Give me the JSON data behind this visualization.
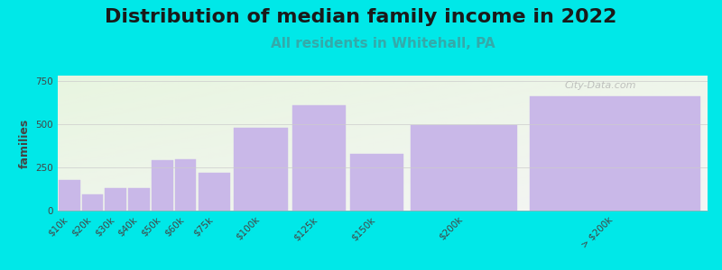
{
  "title": "Distribution of median family income in 2022",
  "subtitle": "All residents in Whitehall, PA",
  "ylabel": "families",
  "background_color": "#00e8e8",
  "plot_bg_left_color": "#e8f5e0",
  "plot_bg_right_color": "#f5f5f5",
  "bar_color": "#c9b8e8",
  "bar_edge_color": "#c9b8e8",
  "categories": [
    "$10k",
    "$20k",
    "$30k",
    "$40k",
    "$50k",
    "$60k",
    "$75k",
    "$100k",
    "$125k",
    "$150k",
    "$200k",
    "> $200k"
  ],
  "values": [
    175,
    95,
    130,
    130,
    290,
    295,
    220,
    480,
    610,
    330,
    495,
    660
  ],
  "bin_lefts": [
    0,
    10,
    20,
    30,
    40,
    50,
    60,
    75,
    100,
    125,
    150,
    200
  ],
  "bin_widths": [
    10,
    10,
    10,
    10,
    10,
    10,
    15,
    25,
    25,
    25,
    50,
    80
  ],
  "ylim": [
    0,
    780
  ],
  "yticks": [
    0,
    250,
    500,
    750
  ],
  "title_fontsize": 16,
  "subtitle_fontsize": 11,
  "ylabel_fontsize": 9,
  "tick_fontsize": 7.5,
  "watermark": "City-Data.com",
  "watermark_color": "#aaaaaa"
}
